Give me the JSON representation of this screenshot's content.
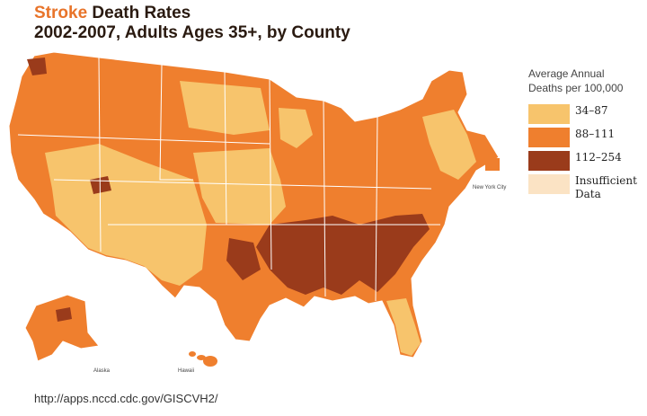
{
  "title": {
    "highlight": "Stroke",
    "rest": " Death Rates",
    "subtitle": "2002-2007, Adults Ages 35+, by County"
  },
  "legend": {
    "title_line1": "Average Annual",
    "title_line2": "Deaths per 100,000",
    "items": [
      {
        "label": "34–87",
        "color": "#f7c46c"
      },
      {
        "label": "88–111",
        "color": "#ef7f2e"
      },
      {
        "label": "112–254",
        "color": "#9a3b1b"
      },
      {
        "label": "Insufficient Data",
        "color": "#fbe3c4"
      }
    ]
  },
  "map_labels": {
    "new_york_city": "New York City",
    "alaska": "Alaska",
    "hawaii": "Hawaii"
  },
  "source_url": "http://apps.nccd.cdc.gov/GISCVH2/"
}
